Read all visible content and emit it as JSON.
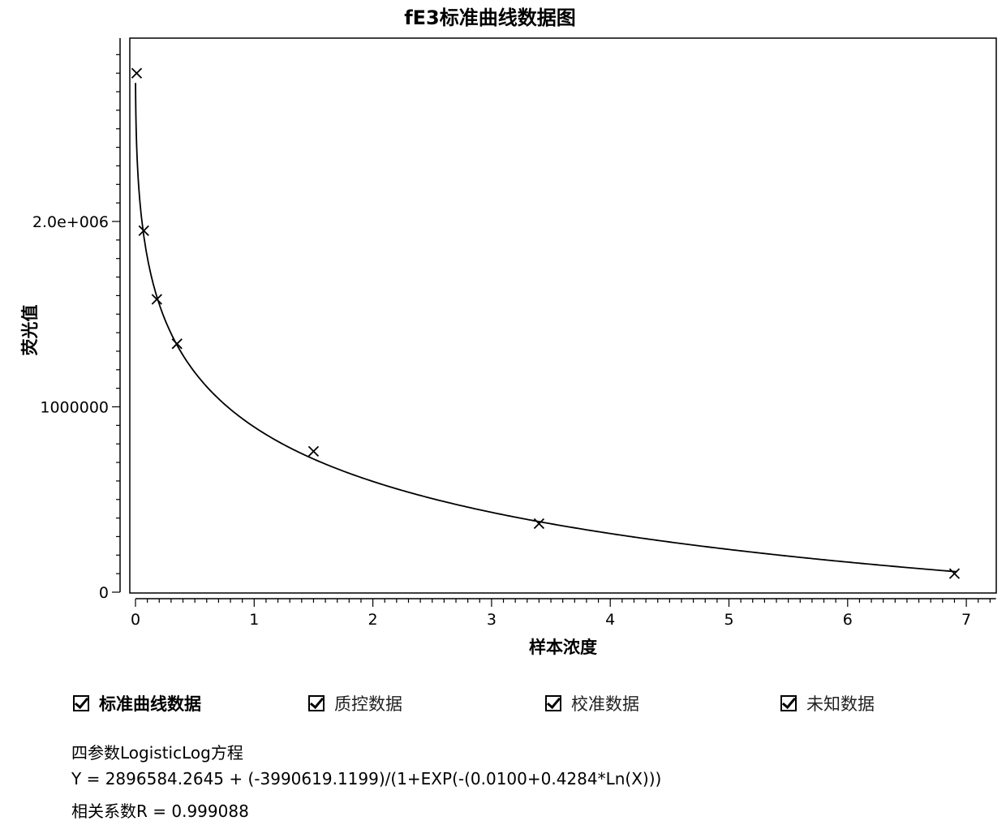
{
  "chart_data": {
    "type": "scatter",
    "title": "fE3标准曲线数据图",
    "xlabel": "样本浓度",
    "ylabel": "荧光值",
    "xlim": [
      0,
      7
    ],
    "ylim": [
      0,
      2900000
    ],
    "x_ticks": [
      "0",
      "1",
      "2",
      "3",
      "4",
      "5",
      "6",
      "7"
    ],
    "y_ticks": [
      {
        "value": 0,
        "label": "0"
      },
      {
        "value": 1000000,
        "label": "1000000"
      },
      {
        "value": 2000000,
        "label": "2.0e+006"
      }
    ],
    "grid": false,
    "series": [
      {
        "marker": "x",
        "points": [
          {
            "x": 0.01,
            "y": 2800000
          },
          {
            "x": 0.07,
            "y": 1950000
          },
          {
            "x": 0.18,
            "y": 1580000
          },
          {
            "x": 0.35,
            "y": 1340000
          },
          {
            "x": 1.5,
            "y": 760000
          },
          {
            "x": 3.4,
            "y": 370000
          },
          {
            "x": 6.9,
            "y": 100000
          }
        ]
      }
    ],
    "fit": {
      "model": "4PL",
      "a": 2896584.2645,
      "b": -3990619.1199,
      "c": 0.01,
      "d": 0.4284
    }
  },
  "legend": [
    {
      "label": "标准曲线数据",
      "checked": true
    },
    {
      "label": "质控数据",
      "checked": true
    },
    {
      "label": "校准数据",
      "checked": true
    },
    {
      "label": "未知数据",
      "checked": true
    }
  ],
  "equation": {
    "name": "四参数LogisticLog方程",
    "formula": "Y = 2896584.2645 + (-3990619.1199)/(1+EXP(-(0.0100+0.4284*Ln(X)))",
    "correlation": "相关系数R = 0.999088"
  }
}
